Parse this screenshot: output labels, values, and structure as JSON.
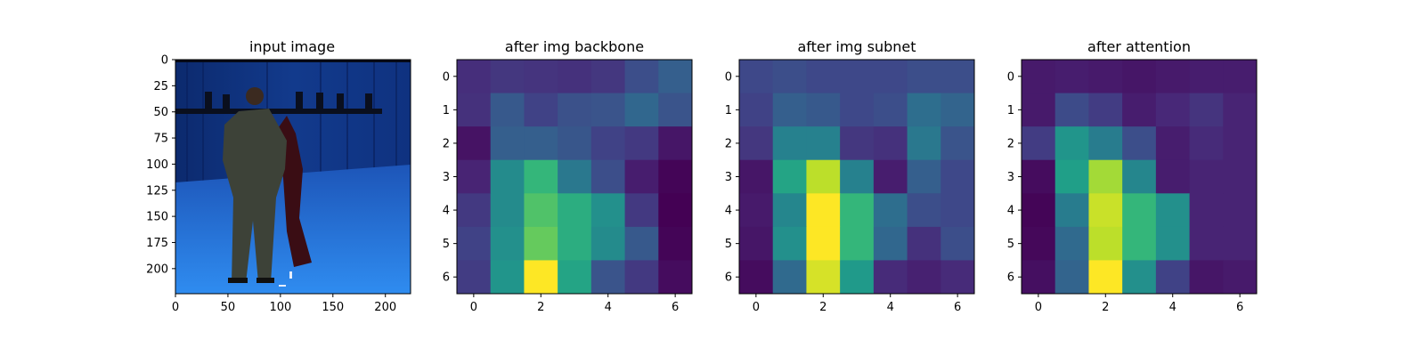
{
  "chart_data": [
    {
      "type": "image",
      "title": "input image",
      "xticks": [
        0,
        50,
        100,
        150,
        200
      ],
      "yticks": [
        0,
        25,
        50,
        75,
        100,
        125,
        150,
        175,
        200
      ],
      "xlim": [
        0,
        224
      ],
      "ylim": [
        224,
        0
      ],
      "content": "photo: two people dancing in a blue motion-capture studio"
    },
    {
      "type": "heatmap",
      "title": "after img backbone",
      "colormap": "viridis",
      "xticks": [
        0,
        2,
        4,
        6
      ],
      "yticks": [
        0,
        1,
        2,
        3,
        4,
        5,
        6
      ],
      "values": [
        [
          0.13,
          0.16,
          0.15,
          0.14,
          0.16,
          0.24,
          0.3
        ],
        [
          0.14,
          0.28,
          0.2,
          0.25,
          0.26,
          0.33,
          0.26
        ],
        [
          0.05,
          0.3,
          0.3,
          0.27,
          0.2,
          0.17,
          0.06
        ],
        [
          0.1,
          0.48,
          0.66,
          0.4,
          0.24,
          0.08,
          0.01
        ],
        [
          0.17,
          0.48,
          0.72,
          0.62,
          0.5,
          0.17,
          0.0
        ],
        [
          0.2,
          0.5,
          0.76,
          0.62,
          0.48,
          0.28,
          0.01
        ],
        [
          0.18,
          0.52,
          1.0,
          0.58,
          0.26,
          0.17,
          0.03
        ]
      ]
    },
    {
      "type": "heatmap",
      "title": "after img subnet",
      "colormap": "viridis",
      "xticks": [
        0,
        2,
        4,
        6
      ],
      "yticks": [
        0,
        1,
        2,
        3,
        4,
        5,
        6
      ],
      "values": [
        [
          0.22,
          0.24,
          0.22,
          0.22,
          0.22,
          0.24,
          0.24
        ],
        [
          0.2,
          0.3,
          0.28,
          0.22,
          0.24,
          0.36,
          0.32
        ],
        [
          0.16,
          0.44,
          0.44,
          0.16,
          0.14,
          0.4,
          0.26
        ],
        [
          0.06,
          0.58,
          0.9,
          0.44,
          0.08,
          0.3,
          0.22
        ],
        [
          0.07,
          0.46,
          1.0,
          0.66,
          0.36,
          0.24,
          0.22
        ],
        [
          0.06,
          0.5,
          1.0,
          0.66,
          0.33,
          0.14,
          0.24
        ],
        [
          0.03,
          0.34,
          0.94,
          0.54,
          0.12,
          0.09,
          0.12
        ]
      ]
    },
    {
      "type": "heatmap",
      "title": "after attention",
      "colormap": "viridis",
      "xticks": [
        0,
        2,
        4,
        6
      ],
      "yticks": [
        0,
        1,
        2,
        3,
        4,
        5,
        6
      ],
      "values": [
        [
          0.07,
          0.08,
          0.07,
          0.06,
          0.07,
          0.08,
          0.08
        ],
        [
          0.07,
          0.23,
          0.18,
          0.08,
          0.11,
          0.15,
          0.1
        ],
        [
          0.18,
          0.52,
          0.42,
          0.24,
          0.08,
          0.12,
          0.1
        ],
        [
          0.03,
          0.56,
          0.86,
          0.46,
          0.08,
          0.1,
          0.1
        ],
        [
          0.01,
          0.42,
          0.92,
          0.66,
          0.5,
          0.1,
          0.1
        ],
        [
          0.02,
          0.34,
          0.9,
          0.66,
          0.5,
          0.1,
          0.1
        ],
        [
          0.04,
          0.32,
          1.0,
          0.5,
          0.2,
          0.06,
          0.07
        ]
      ]
    }
  ]
}
